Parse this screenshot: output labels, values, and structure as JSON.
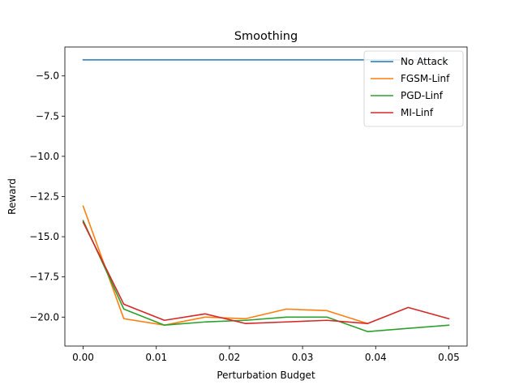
{
  "chart_data": {
    "type": "line",
    "title": "Smoothing",
    "xlabel": "Perturbation Budget",
    "ylabel": "Reward",
    "xlim": [
      -0.0025,
      0.0525
    ],
    "ylim": [
      -21.8,
      -3.2
    ],
    "xticks": [
      0.0,
      0.01,
      0.02,
      0.03,
      0.04,
      0.05
    ],
    "xtick_labels": [
      "0.00",
      "0.01",
      "0.02",
      "0.03",
      "0.04",
      "0.05"
    ],
    "yticks": [
      -5.0,
      -7.5,
      -10.0,
      -12.5,
      -15.0,
      -17.5,
      -20.0
    ],
    "ytick_labels": [
      "−5.0",
      "−7.5",
      "−10.0",
      "−12.5",
      "−15.0",
      "−17.5",
      "−20.0"
    ],
    "grid": false,
    "legend_position": "top-right",
    "x": [
      0.0,
      0.00556,
      0.01111,
      0.01667,
      0.02222,
      0.02778,
      0.03333,
      0.03889,
      0.04444,
      0.05
    ],
    "series": [
      {
        "name": "No Attack",
        "color": "#1f77b4",
        "x": [
          0.0,
          0.00556,
          0.01111,
          0.01667,
          0.02222,
          0.02778,
          0.03333,
          0.03889,
          0.04444,
          0.05
        ],
        "values": [
          -4.0,
          -4.0,
          -4.0,
          -4.0,
          -4.0,
          -4.0,
          -4.0,
          -4.0,
          -4.0,
          -4.0
        ]
      },
      {
        "name": "FGSM-Linf",
        "color": "#ff7f0e",
        "x": [
          0.0,
          0.00556,
          0.01111,
          0.01667,
          0.02222,
          0.02778,
          0.03333,
          0.03889
        ],
        "values": [
          -13.1,
          -20.1,
          -20.5,
          -20.0,
          -20.1,
          -19.5,
          -19.6,
          -20.4
        ]
      },
      {
        "name": "PGD-Linf",
        "color": "#2ca02c",
        "x": [
          0.0,
          0.00556,
          0.01111,
          0.01667,
          0.02222,
          0.02778,
          0.03333,
          0.03889,
          0.05
        ],
        "values": [
          -14.0,
          -19.5,
          -20.5,
          -20.3,
          -20.2,
          -20.0,
          -20.0,
          -20.9,
          -20.5
        ]
      },
      {
        "name": "MI-Linf",
        "color": "#d62728",
        "x": [
          0.0,
          0.00556,
          0.01111,
          0.01667,
          0.02222,
          0.02778,
          0.03333,
          0.03889,
          0.04444,
          0.05
        ],
        "values": [
          -14.1,
          -19.2,
          -20.2,
          -19.8,
          -20.4,
          -20.3,
          -20.2,
          -20.4,
          -19.4,
          -20.1
        ]
      }
    ]
  }
}
